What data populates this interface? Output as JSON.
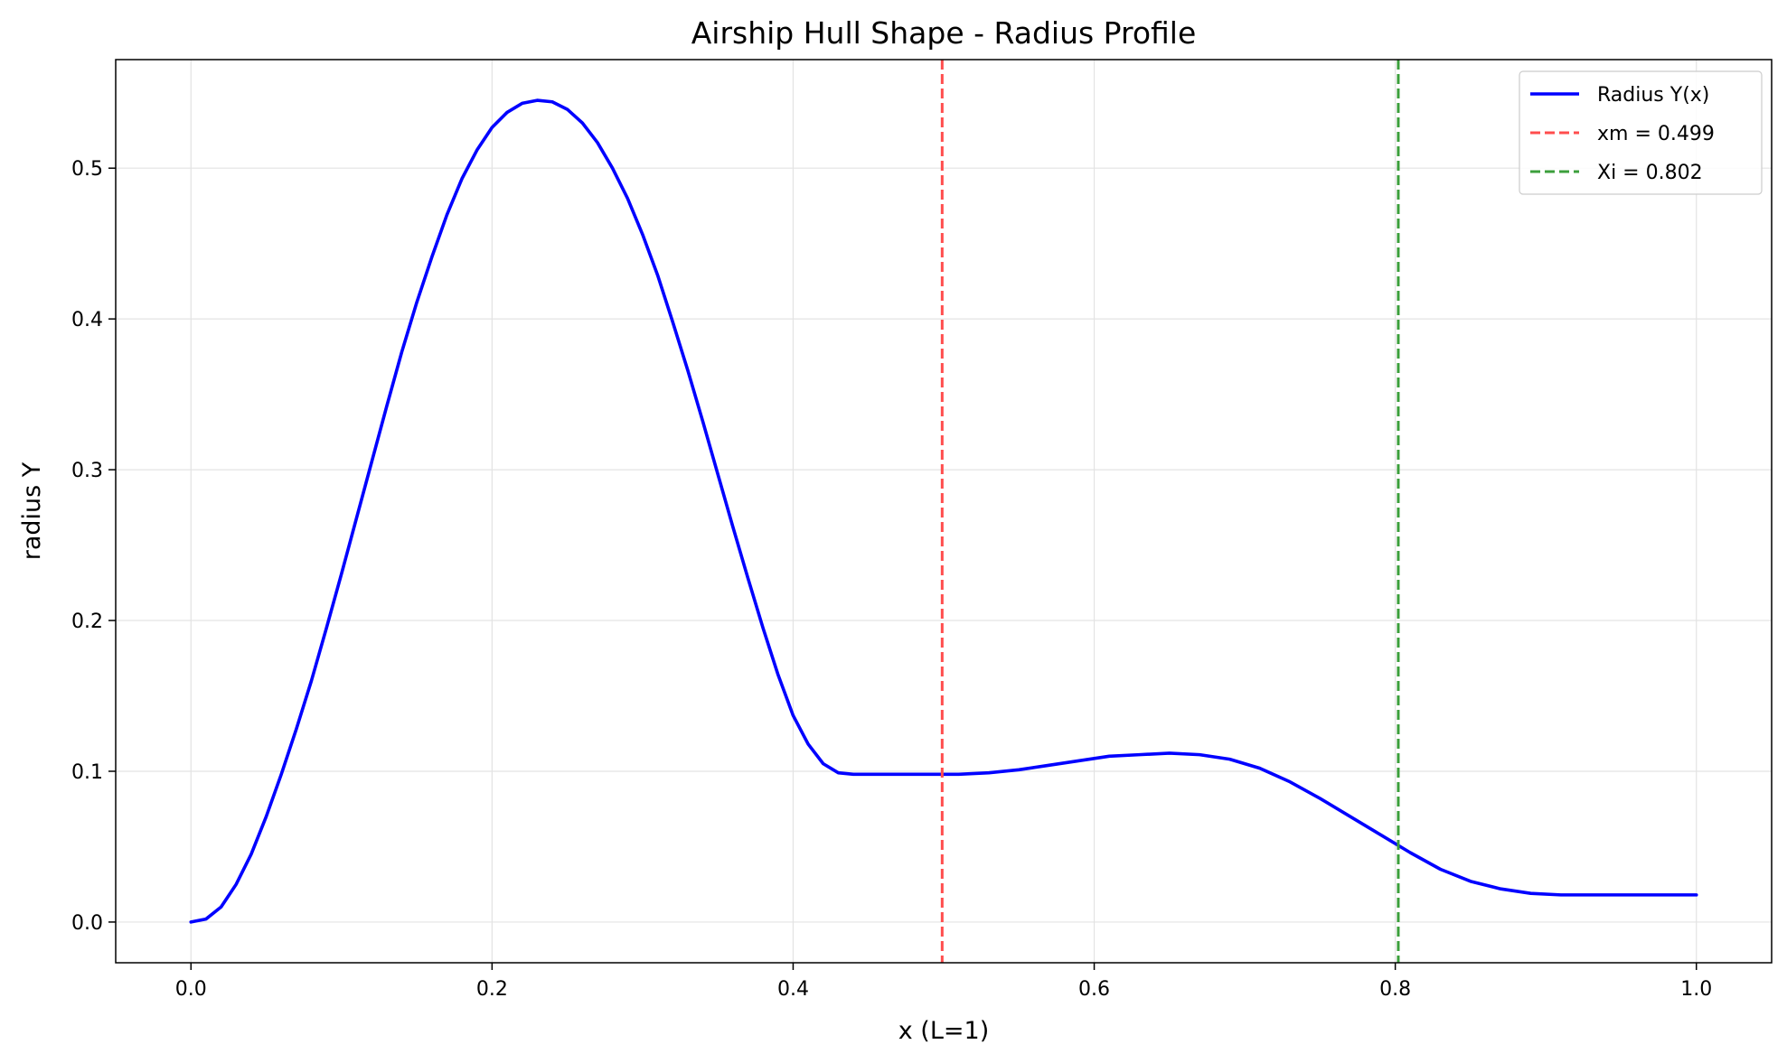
{
  "chart_data": {
    "type": "line",
    "title": "Airship Hull Shape - Radius Profile",
    "xlabel": "x (L=1)",
    "ylabel": "radius Y",
    "xlim": [
      -0.05,
      1.05
    ],
    "ylim": [
      -0.027,
      0.572
    ],
    "grid": true,
    "legend_position": "top-right",
    "x_ticks": [
      0.0,
      0.2,
      0.4,
      0.6,
      0.8,
      1.0
    ],
    "x_tick_labels": [
      "0.0",
      "0.2",
      "0.4",
      "0.6",
      "0.8",
      "1.0"
    ],
    "y_ticks": [
      0.0,
      0.1,
      0.2,
      0.3,
      0.4,
      0.5
    ],
    "y_tick_labels": [
      "0.0",
      "0.1",
      "0.2",
      "0.3",
      "0.4",
      "0.5"
    ],
    "series": [
      {
        "name": "Radius Y(x)",
        "color": "#0000ff",
        "style": "solid",
        "x": [
          0.0,
          0.01,
          0.02,
          0.03,
          0.04,
          0.05,
          0.06,
          0.07,
          0.08,
          0.09,
          0.1,
          0.11,
          0.12,
          0.13,
          0.14,
          0.15,
          0.16,
          0.17,
          0.18,
          0.19,
          0.2,
          0.21,
          0.22,
          0.23,
          0.24,
          0.25,
          0.26,
          0.27,
          0.28,
          0.29,
          0.3,
          0.31,
          0.32,
          0.33,
          0.34,
          0.35,
          0.36,
          0.37,
          0.38,
          0.39,
          0.4,
          0.41,
          0.42,
          0.43,
          0.44,
          0.45,
          0.46,
          0.47,
          0.48,
          0.49,
          0.499,
          0.51,
          0.53,
          0.55,
          0.57,
          0.59,
          0.61,
          0.63,
          0.65,
          0.67,
          0.69,
          0.71,
          0.73,
          0.75,
          0.77,
          0.79,
          0.81,
          0.83,
          0.85,
          0.87,
          0.89,
          0.91,
          0.93,
          0.95,
          0.97,
          0.99,
          1.0
        ],
        "y": [
          0.0,
          0.002,
          0.01,
          0.025,
          0.045,
          0.07,
          0.098,
          0.128,
          0.16,
          0.195,
          0.231,
          0.268,
          0.305,
          0.342,
          0.378,
          0.411,
          0.441,
          0.469,
          0.493,
          0.512,
          0.527,
          0.537,
          0.543,
          0.545,
          0.544,
          0.539,
          0.53,
          0.517,
          0.5,
          0.48,
          0.456,
          0.429,
          0.398,
          0.366,
          0.332,
          0.297,
          0.262,
          0.228,
          0.195,
          0.164,
          0.137,
          0.118,
          0.105,
          0.099,
          0.098,
          0.098,
          0.098,
          0.098,
          0.098,
          0.098,
          0.098,
          0.098,
          0.099,
          0.101,
          0.104,
          0.107,
          0.11,
          0.111,
          0.112,
          0.111,
          0.108,
          0.102,
          0.093,
          0.082,
          0.07,
          0.058,
          0.046,
          0.035,
          0.027,
          0.022,
          0.019,
          0.018,
          0.018,
          0.018,
          0.018,
          0.018,
          0.018
        ]
      }
    ],
    "vlines": [
      {
        "name": "xm = 0.499",
        "x": 0.499,
        "color": "#ff4d4d",
        "style": "dashed"
      },
      {
        "name": "Xi = 0.802",
        "x": 0.802,
        "color": "#3c9f3c",
        "style": "dashed"
      }
    ]
  }
}
